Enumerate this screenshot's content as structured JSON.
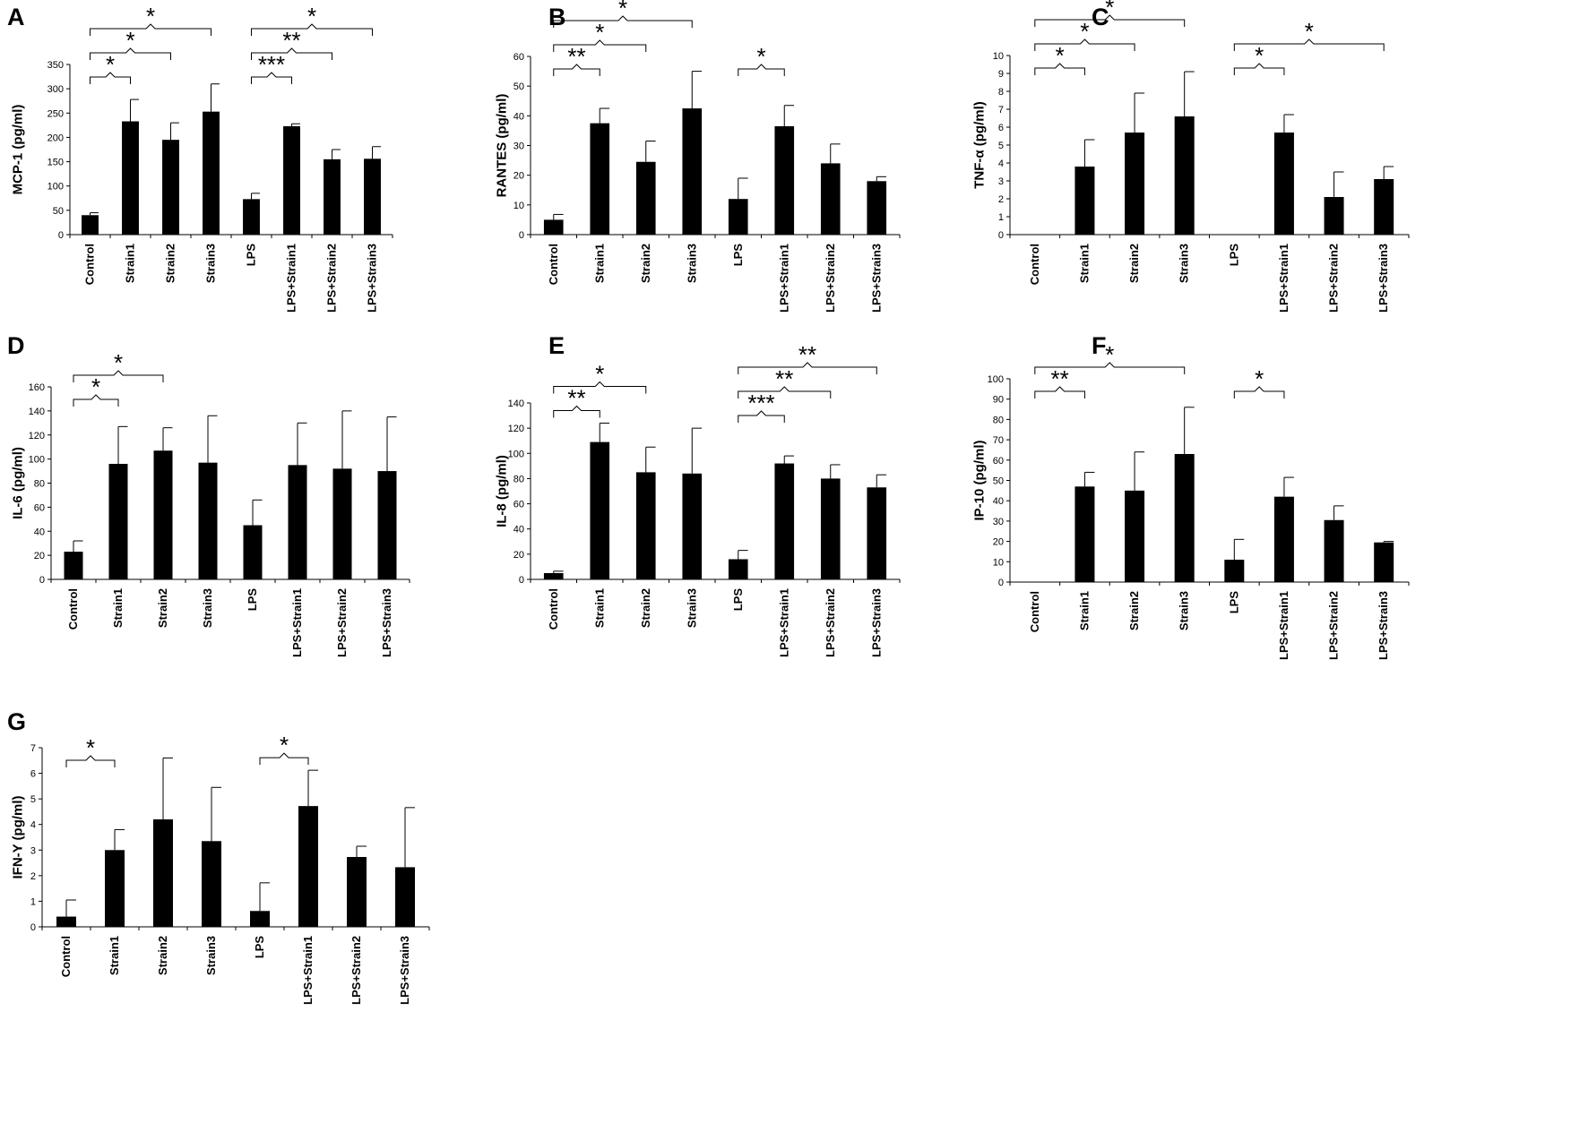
{
  "chart_data": [
    {
      "panel": "A",
      "type": "bar",
      "ylabel": "MCP-1 (pg/ml)",
      "ylim": [
        0,
        350
      ],
      "yticks": [
        0,
        50,
        100,
        150,
        200,
        250,
        300,
        350
      ],
      "categories": [
        "Control",
        "Strain1",
        "Strain2",
        "Strain3",
        "LPS",
        "LPS+Strain1",
        "LPS+Strain2",
        "LPS+Strain3"
      ],
      "values": [
        40,
        233,
        195,
        253,
        73,
        223,
        155,
        156
      ],
      "errors": [
        5,
        45,
        35,
        57,
        12,
        5,
        20,
        25
      ],
      "brackets": [
        {
          "from": 0,
          "to": 1,
          "label": "*"
        },
        {
          "from": 0,
          "to": 2,
          "label": "*"
        },
        {
          "from": 0,
          "to": 3,
          "label": "*"
        },
        {
          "from": 4,
          "to": 5,
          "label": "***"
        },
        {
          "from": 4,
          "to": 6,
          "label": "**"
        },
        {
          "from": 4,
          "to": 7,
          "label": "*"
        }
      ]
    },
    {
      "panel": "B",
      "type": "bar",
      "ylabel": "RANTES (pg/ml)",
      "ylim": [
        0,
        60
      ],
      "yticks": [
        0,
        10,
        20,
        30,
        40,
        50,
        60
      ],
      "categories": [
        "Control",
        "Strain1",
        "Strain2",
        "Strain3",
        "LPS",
        "LPS+Strain1",
        "LPS+Strain2",
        "LPS+Strain3"
      ],
      "values": [
        5,
        37.5,
        24.5,
        42.5,
        12,
        36.5,
        24,
        18
      ],
      "errors": [
        1.8,
        5,
        7,
        12.5,
        7,
        7,
        6.5,
        1.5
      ],
      "brackets": [
        {
          "from": 0,
          "to": 1,
          "label": "**"
        },
        {
          "from": 0,
          "to": 2,
          "label": "*"
        },
        {
          "from": 0,
          "to": 3,
          "label": "*"
        },
        {
          "from": 4,
          "to": 5,
          "label": "*"
        }
      ]
    },
    {
      "panel": "C",
      "type": "bar",
      "ylabel": "TNF-α (pg/ml)",
      "ylim": [
        0,
        10
      ],
      "yticks": [
        0,
        1,
        2,
        3,
        4,
        5,
        6,
        7,
        8,
        9,
        10
      ],
      "categories": [
        "Control",
        "Strain1",
        "Strain2",
        "Strain3",
        "LPS",
        "LPS+Strain1",
        "LPS+Strain2",
        "LPS+Strain3"
      ],
      "values": [
        0,
        3.8,
        5.7,
        6.6,
        0,
        5.7,
        2.1,
        3.1
      ],
      "errors": [
        0,
        1.5,
        2.2,
        2.5,
        0,
        1,
        1.4,
        0.7
      ],
      "brackets": [
        {
          "from": 0,
          "to": 1,
          "label": "*"
        },
        {
          "from": 0,
          "to": 2,
          "label": "*"
        },
        {
          "from": 0,
          "to": 3,
          "label": "*"
        },
        {
          "from": 4,
          "to": 5,
          "label": "*"
        },
        {
          "from": 4,
          "to": 7,
          "label": "*"
        }
      ]
    },
    {
      "panel": "D",
      "type": "bar",
      "ylabel": "IL-6 (pg/ml)",
      "ylim": [
        0,
        160
      ],
      "yticks": [
        0,
        20,
        40,
        60,
        80,
        100,
        120,
        140,
        160
      ],
      "categories": [
        "Control",
        "Strain1",
        "Strain2",
        "Strain3",
        "LPS",
        "LPS+Strain1",
        "LPS+Strain2",
        "LPS+Strain3"
      ],
      "values": [
        23,
        96,
        107,
        97,
        45,
        95,
        92,
        90
      ],
      "errors": [
        9,
        31,
        19,
        39,
        21,
        35,
        48,
        45
      ],
      "brackets": [
        {
          "from": 0,
          "to": 1,
          "label": "*"
        },
        {
          "from": 0,
          "to": 2,
          "label": "*"
        }
      ]
    },
    {
      "panel": "E",
      "type": "bar",
      "ylabel": "IL-8 (pg/ml)",
      "ylim": [
        0,
        140
      ],
      "yticks": [
        0,
        20,
        40,
        60,
        80,
        100,
        120,
        140
      ],
      "categories": [
        "Control",
        "Strain1",
        "Strain2",
        "Strain3",
        "LPS",
        "LPS+Strain1",
        "LPS+Strain2",
        "LPS+Strain3"
      ],
      "values": [
        5,
        109,
        85,
        84,
        16,
        92,
        80,
        73
      ],
      "errors": [
        1.5,
        15,
        20,
        36,
        7,
        6,
        11,
        10
      ],
      "brackets": [
        {
          "from": 0,
          "to": 1,
          "label": "**"
        },
        {
          "from": 0,
          "to": 2,
          "label": "*"
        },
        {
          "from": 4,
          "to": 5,
          "label": "***"
        },
        {
          "from": 4,
          "to": 6,
          "label": "**"
        },
        {
          "from": 4,
          "to": 7,
          "label": "**"
        }
      ]
    },
    {
      "panel": "F",
      "type": "bar",
      "ylabel": "IP-10 (pg/ml)",
      "ylim": [
        0,
        100
      ],
      "yticks": [
        0,
        10,
        20,
        30,
        40,
        50,
        60,
        70,
        80,
        90,
        100
      ],
      "categories": [
        "Control",
        "Strain1",
        "Strain2",
        "Strain3",
        "LPS",
        "LPS+Strain1",
        "LPS+Strain2",
        "LPS+Strain3"
      ],
      "values": [
        0,
        47,
        45,
        63,
        11,
        42,
        30.5,
        19.5
      ],
      "errors": [
        0,
        7,
        19,
        23,
        10,
        9.5,
        7,
        0.5
      ],
      "brackets": [
        {
          "from": 0,
          "to": 1,
          "label": "**"
        },
        {
          "from": 0,
          "to": 3,
          "label": "*"
        },
        {
          "from": 4,
          "to": 5,
          "label": "*"
        }
      ]
    },
    {
      "panel": "G",
      "type": "bar",
      "ylabel": "IFN-Y (pg/ml)",
      "ylim": [
        0,
        7
      ],
      "yticks": [
        0,
        1,
        2,
        3,
        4,
        5,
        6,
        7
      ],
      "categories": [
        "Control",
        "Strain1",
        "Strain2",
        "Strain3",
        "LPS",
        "LPS+Strain1",
        "LPS+Strain2",
        "LPS+Strain3"
      ],
      "values": [
        0.4,
        3.0,
        4.2,
        3.35,
        0.62,
        4.72,
        2.73,
        2.33
      ],
      "errors": [
        0.65,
        0.8,
        2.4,
        2.1,
        1.1,
        1.4,
        0.42,
        2.33
      ],
      "brackets": [
        {
          "from": 0,
          "to": 1,
          "label": "*"
        },
        {
          "from": 4,
          "to": 5,
          "label": "*"
        }
      ]
    }
  ]
}
